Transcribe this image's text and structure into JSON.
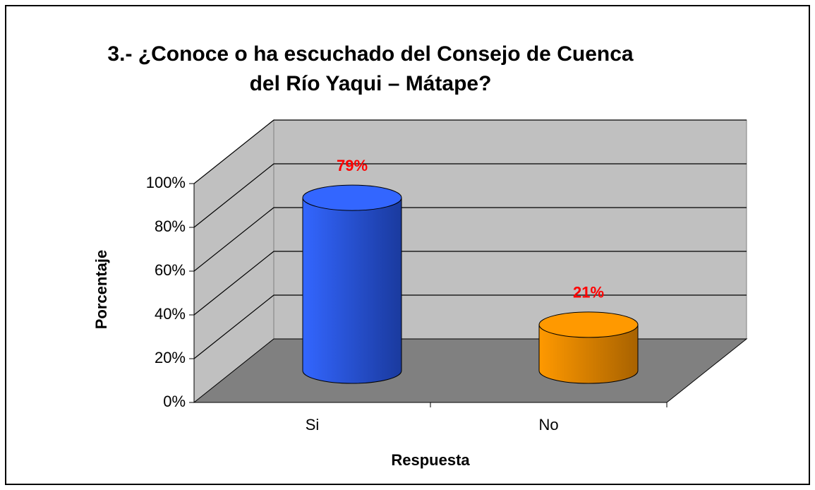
{
  "chart_data": {
    "type": "bar3d",
    "title": [
      "3.- ¿Conoce o ha escuchado del Consejo de Cuenca",
      "del Río Yaqui – Mátape?"
    ],
    "categories": [
      "Si",
      "No"
    ],
    "values": [
      79,
      21
    ],
    "value_labels": [
      "79%",
      "21%"
    ],
    "colors": [
      "#3366ff",
      "#ff9900"
    ],
    "value_label_color": "#ff0000",
    "ylabel": "Porcentaje",
    "xlabel": "Respuesta",
    "ylim": [
      0,
      100
    ],
    "yticks": [
      {
        "value": 0,
        "label": "0%"
      },
      {
        "value": 20,
        "label": "20%"
      },
      {
        "value": 40,
        "label": "40%"
      },
      {
        "value": 60,
        "label": "60%"
      },
      {
        "value": 80,
        "label": "80%"
      },
      {
        "value": 100,
        "label": "100%"
      }
    ],
    "grid": true
  }
}
